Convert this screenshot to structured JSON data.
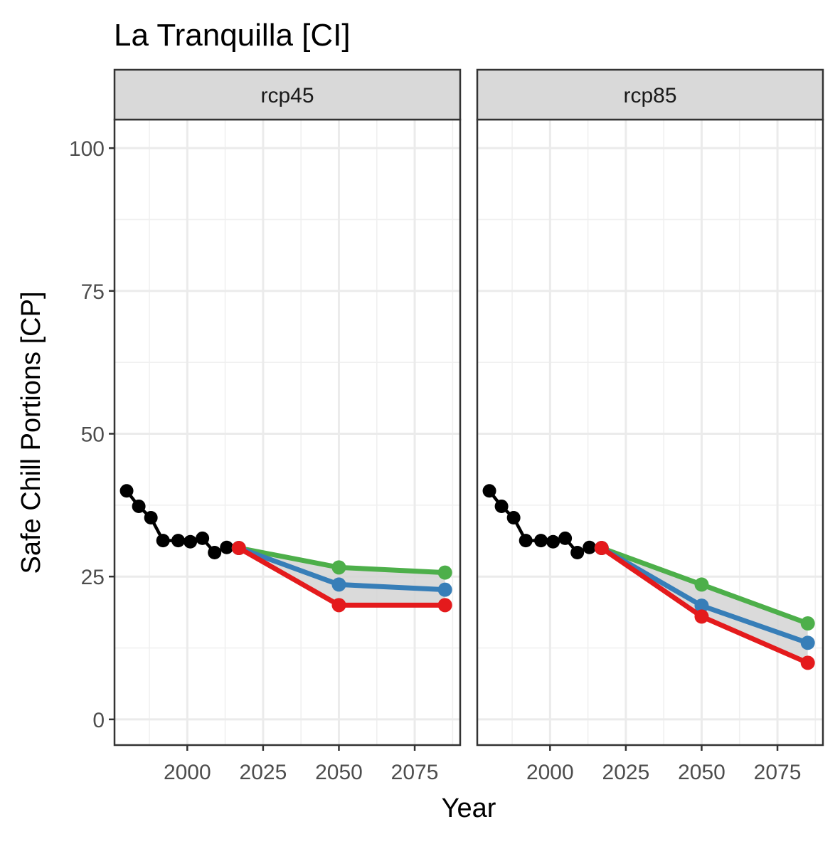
{
  "chart_data": {
    "type": "line",
    "title": "La Tranquilla [CI]",
    "xlabel": "Year",
    "ylabel": "Safe Chill Portions [CP]",
    "xlim": [
      1976,
      2090
    ],
    "ylim": [
      -4.5,
      105
    ],
    "xticks": [
      2000,
      2025,
      2050,
      2075
    ],
    "xtick_labels": [
      "2000",
      "2025",
      "2050",
      "2075"
    ],
    "yticks": [
      0,
      25,
      50,
      75,
      100
    ],
    "ytick_labels": [
      "0",
      "25",
      "50",
      "75",
      "100"
    ],
    "grid": true,
    "colors": {
      "historic": "#000000",
      "low": "#e41a1c",
      "mid": "#377eb8",
      "high": "#4daf4a",
      "band": "#d3d3d3"
    },
    "panels": [
      {
        "label": "rcp45",
        "historic": {
          "x": [
            1980,
            1984,
            1988,
            1992,
            1997,
            2001,
            2005,
            2009,
            2013,
            2017
          ],
          "y": [
            40,
            37.3,
            35.3,
            31.3,
            31.3,
            31.1,
            31.7,
            29.2,
            30.1,
            30
          ]
        },
        "series": [
          {
            "key": "high",
            "x": [
              2017,
              2050,
              2085
            ],
            "y": [
              30,
              26.6,
              25.7
            ]
          },
          {
            "key": "mid",
            "x": [
              2017,
              2050,
              2085
            ],
            "y": [
              30,
              23.6,
              22.7
            ]
          },
          {
            "key": "low",
            "x": [
              2017,
              2050,
              2085
            ],
            "y": [
              30,
              20,
              20
            ]
          }
        ]
      },
      {
        "label": "rcp85",
        "historic": {
          "x": [
            1980,
            1984,
            1988,
            1992,
            1997,
            2001,
            2005,
            2009,
            2013,
            2017
          ],
          "y": [
            40,
            37.3,
            35.3,
            31.3,
            31.3,
            31.1,
            31.7,
            29.2,
            30.1,
            30
          ]
        },
        "series": [
          {
            "key": "high",
            "x": [
              2017,
              2050,
              2085
            ],
            "y": [
              30,
              23.6,
              16.8
            ]
          },
          {
            "key": "mid",
            "x": [
              2017,
              2050,
              2085
            ],
            "y": [
              30,
              19.9,
              13.4
            ]
          },
          {
            "key": "low",
            "x": [
              2017,
              2050,
              2085
            ],
            "y": [
              30,
              18,
              9.9
            ]
          }
        ]
      }
    ]
  }
}
